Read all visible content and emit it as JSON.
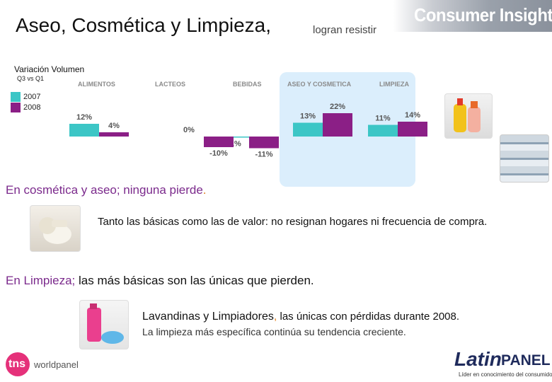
{
  "header": {
    "title": "Aseo, Cosmética y Limpieza,",
    "subtitle": "logran resistir",
    "brand": "Consumer Insight"
  },
  "chart_data": {
    "type": "bar",
    "title": "Variación Volumen",
    "subtitle": "Q3 vs Q1",
    "categories": [
      "ALIMENTOS",
      "LACTEOS",
      "BEBIDAS",
      "ASEO Y COSMETICA",
      "LIMPIEZA"
    ],
    "series": [
      {
        "name": "2007",
        "color": "#3cc6c6",
        "values": [
          12,
          0,
          -1,
          13,
          11
        ],
        "labels": [
          "12%",
          "0%",
          "-1%",
          "13%",
          "11%"
        ]
      },
      {
        "name": "2008",
        "color": "#8b1f86",
        "values": [
          4,
          -10,
          -11,
          22,
          14
        ],
        "labels": [
          "4%",
          "-10%",
          "-11%",
          "22%",
          "14%"
        ]
      }
    ],
    "highlighted_categories": [
      "ASEO Y COSMETICA",
      "LIMPIEZA"
    ],
    "highlight_color": "#dbeefc",
    "ylim": [
      -11,
      22
    ]
  },
  "sections": {
    "s1_lead": "En cosmética y aseo;",
    "s1_rest": " ninguna pierde",
    "s1_dot": ".",
    "s1_body": "Tanto las básicas como las de valor: no resignan hogares ni frecuencia de compra.",
    "s2_lead": "En Limpieza;",
    "s2_rest": " las más básicas son las únicas que pierden.",
    "s2_body_a": "Lavandinas y Limpiadores",
    "s2_body_comma": ",",
    "s2_body_b": " las únicas con pérdidas durante 2008.",
    "s2_body_c": "La limpieza más específica continúa su tendencia creciente."
  },
  "footer": {
    "tns_logo": "tns",
    "tns_logo_sub": "worldpanel",
    "latin_logo_a": "Latin",
    "latin_logo_b": "PANEL",
    "latin_tagline": "Líder en conocimiento del consumidor"
  },
  "colors": {
    "purple_text": "#7b2a8c",
    "orange_dot": "#e08020",
    "tns_pink": "#e5317a"
  }
}
